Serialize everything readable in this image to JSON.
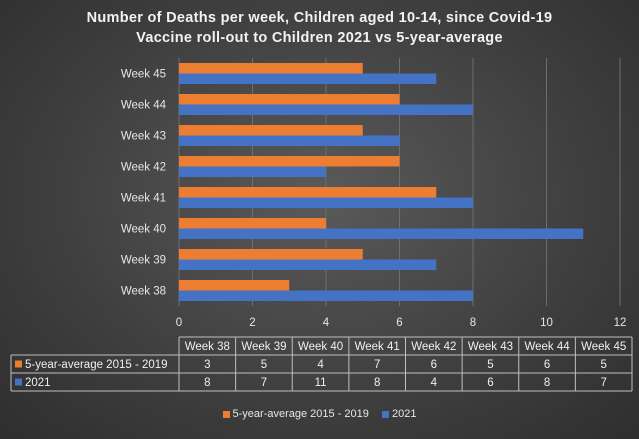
{
  "chart_data": {
    "type": "bar",
    "orientation": "horizontal",
    "title_line1": "Number of Deaths per week, Children aged 10-14, since Covid-19",
    "title_line2": "Vaccine roll-out to Children  2021 vs 5-year-average",
    "categories": [
      "Week 38",
      "Week 39",
      "Week 40",
      "Week 41",
      "Week 42",
      "Week 43",
      "Week 44",
      "Week 45"
    ],
    "series": [
      {
        "name": "5-year-average 2015 - 2019",
        "color": "#ed7d31",
        "values": [
          3,
          5,
          4,
          7,
          6,
          5,
          6,
          5
        ]
      },
      {
        "name": "2021",
        "color": "#4472c4",
        "values": [
          8,
          7,
          11,
          8,
          4,
          6,
          8,
          7
        ]
      }
    ],
    "xlim": [
      0,
      12
    ],
    "xticks": [
      "0",
      "2",
      "4",
      "6",
      "8",
      "10",
      "12"
    ],
    "grid": true,
    "data_table": true,
    "legend_position": "bottom"
  }
}
